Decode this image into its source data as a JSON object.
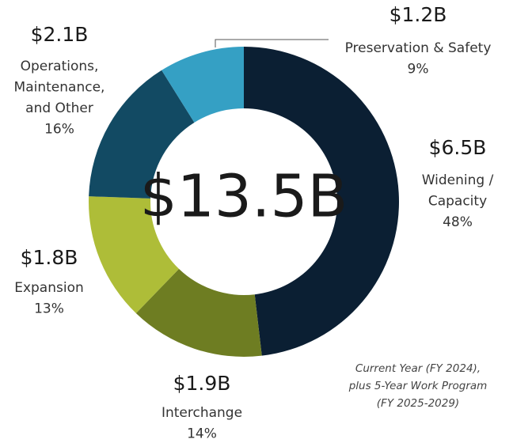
{
  "chart_data": {
    "type": "donut",
    "center_label": "$13.5B",
    "categories": [
      [
        "Widening /",
        "Capacity"
      ],
      [
        "Interchange"
      ],
      [
        "Expansion"
      ],
      [
        "Operations,",
        "Maintenance,",
        "and Other"
      ],
      [
        "Preservation & Safety"
      ]
    ],
    "values": [
      6.5,
      1.9,
      1.8,
      2.1,
      1.2
    ],
    "value_labels": [
      "$6.5B",
      "$1.9B",
      "$1.8B",
      "$2.1B",
      "$1.2B"
    ],
    "percents": [
      48,
      14,
      13,
      16,
      9
    ],
    "percent_labels": [
      "48%",
      "14%",
      "13%",
      "16%",
      "9%"
    ],
    "colors": [
      "#0b1f33",
      "#6e7d22",
      "#aebd38",
      "#124a63",
      "#35a0c4"
    ],
    "note": [
      "Current Year (FY 2024),",
      "plus 5-Year Work Program",
      "(FY 2025-2029)"
    ]
  }
}
